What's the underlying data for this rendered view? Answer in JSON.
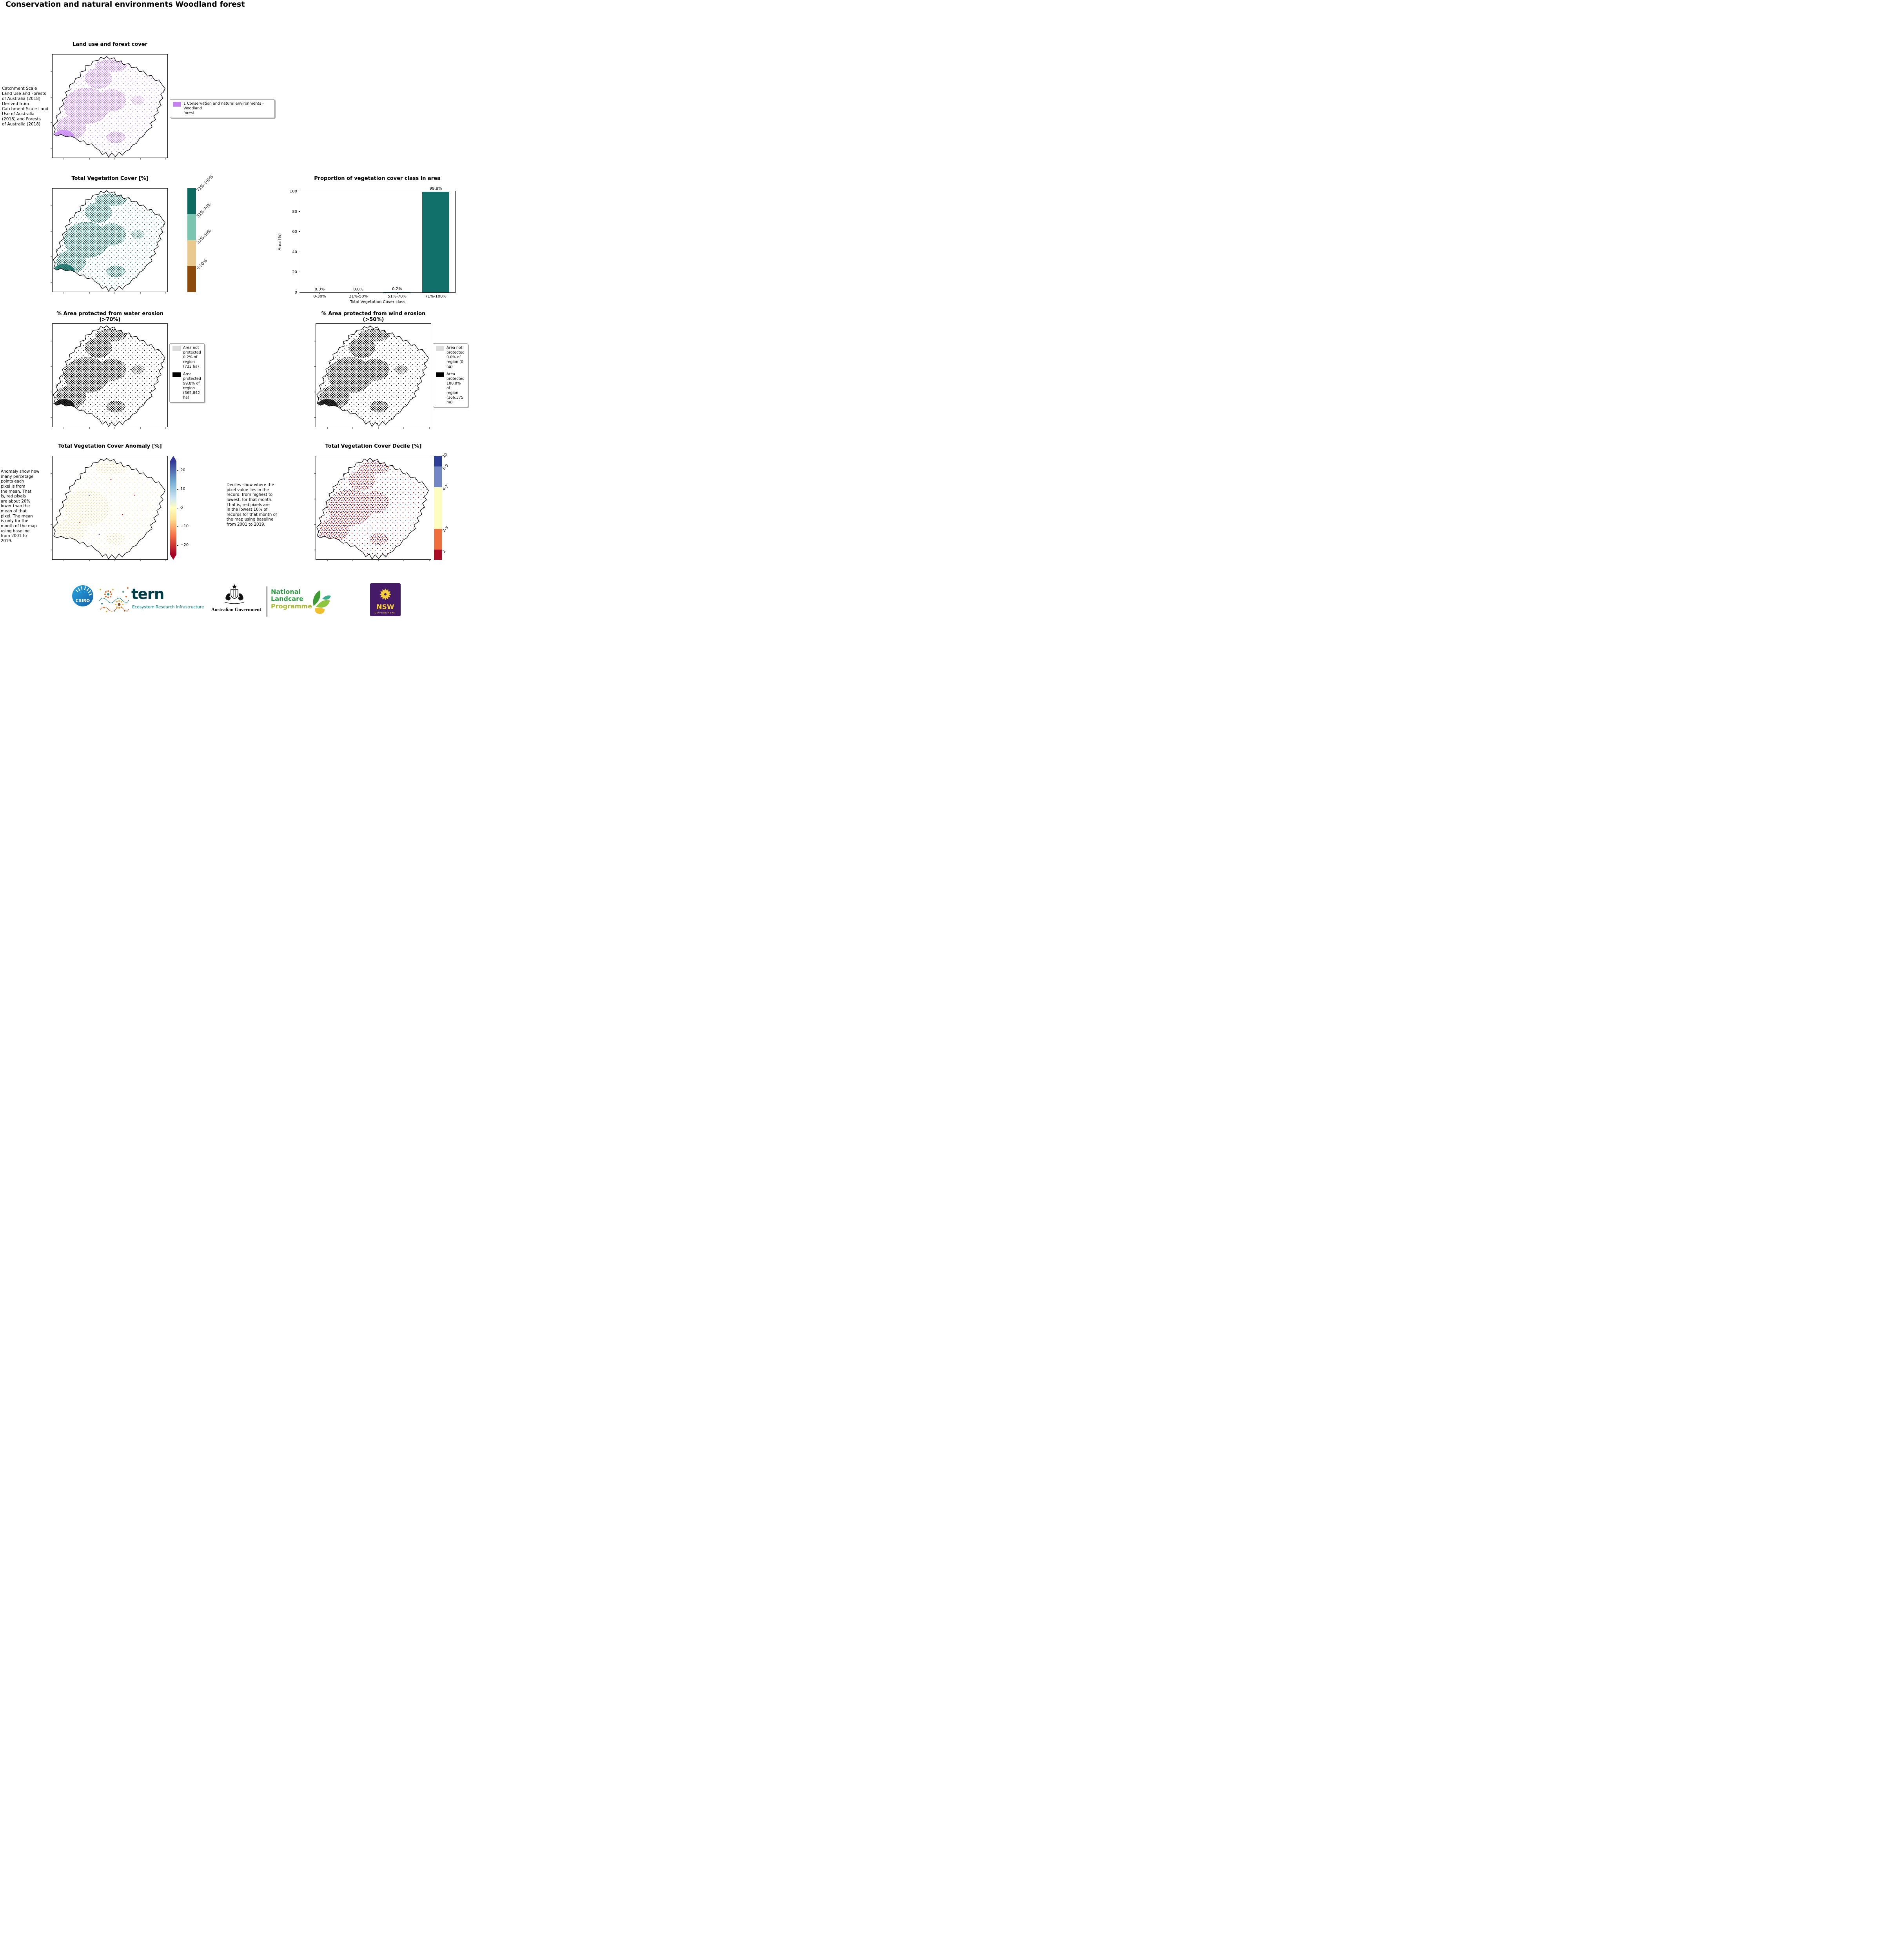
{
  "page": {
    "title": "Conservation and natural environments Woodland forest"
  },
  "colors": {
    "landuse_purple": "#c583f1",
    "teal_dark": "#0d6a60",
    "teal_light": "#7bc4af",
    "tan": "#e9c98f",
    "brown": "#8c4a0b",
    "not_protected_gray": "#dcdcdc",
    "protected_black": "#000000",
    "anomaly_yellow": "#f7e49e"
  },
  "panels": {
    "landuse": {
      "title": "Land use and forest cover",
      "caption": "Catchment Scale\nLand Use and Forests\nof Australia (2018)\nDerived from\nCatchment Scale Land\nUse of Australia\n(2018) and Forests\nof Australia (2018)",
      "legend": [
        {
          "label": "1 Conservation and natural environments - Woodland\nforest",
          "color": "#c583f1"
        }
      ]
    },
    "vegcover": {
      "title": "Total Vegetation Cover [%]",
      "colorbar": [
        {
          "label": "71%-100%",
          "color": "#0d6a60"
        },
        {
          "label": "51%-70%",
          "color": "#7bc4af"
        },
        {
          "label": "31%-50%",
          "color": "#e9c98f"
        },
        {
          "label": "0-30%",
          "color": "#8c4a0b"
        }
      ]
    },
    "water": {
      "title": "% Area protected from water erosion (>70%)",
      "legend": [
        {
          "label": "Area not\nprotected\n0.2% of\nregion\n(733 ha)",
          "color": "#dcdcdc"
        },
        {
          "label": "Area\nprotected\n99.8% of\nregion\n(365,842\nha)",
          "color": "#000000"
        }
      ]
    },
    "wind": {
      "title": "% Area protected from wind erosion (>50%)",
      "legend": [
        {
          "label": "Area not\nprotected\n0.0% of\nregion (0\nha)",
          "color": "#dcdcdc"
        },
        {
          "label": "Area\nprotected\n100.0% of\nregion\n(366,575\nha)",
          "color": "#000000"
        }
      ]
    },
    "anomaly": {
      "title": "Total Vegetation Cover Anomaly [%]",
      "caption": "Anomaly show how\nmany percetage\npoints each\npixel is from\nthe mean. That\nis, red pixels\nare about 20%\nlower than the\nmean of that\npixel. The mean\nis only for the\nmonth of the map\nusing baseline\nfrom 2001 to\n2019.",
      "colorbar_ticks": [
        "20",
        "10",
        "0",
        "−10",
        "−20"
      ],
      "colorbar_range": [
        -25,
        25
      ]
    },
    "decile": {
      "title": "Total Vegetation Cover Decile [%]",
      "caption": "Deciles show where the\npixel value lies in the\nrecord, from highest to\nlowest, for that month.\nThat is, red pixels are\nin the lowest 10% of\nrecords for that month of\nthe map using baseline\nfrom 2001 to 2019.",
      "colorbar": [
        {
          "label": "10",
          "color": "#2c3f94",
          "pct": 10
        },
        {
          "label": "8-9",
          "color": "#7286c4",
          "pct": 20
        },
        {
          "label": "4-7",
          "color": "#fdfdc0",
          "pct": 40
        },
        {
          "label": "2-3",
          "color": "#ee6f3e",
          "pct": 20
        },
        {
          "label": "1",
          "color": "#ab0d26",
          "pct": 10
        }
      ]
    }
  },
  "chart_data": {
    "type": "bar",
    "title": "Proportion of vegetation cover class in area",
    "categories": [
      "0-30%",
      "31%-50%",
      "51%-70%",
      "71%-100%"
    ],
    "values": [
      0.0,
      0.0,
      0.2,
      99.8
    ],
    "bar_labels": [
      "0.0%",
      "0.0%",
      "0.2%",
      "99.8%"
    ],
    "xlabel": "Total Vegetation Cover class",
    "ylabel": "Area (%)",
    "ylim": [
      0,
      100
    ],
    "yticks": [
      0,
      20,
      40,
      60,
      80,
      100
    ],
    "bar_color": "#11706a",
    "grid": false,
    "legend_position": "none"
  },
  "footer": {
    "csiro_label": "CSIRO",
    "tern_name": "tern",
    "tern_subtitle": "Ecosystem Research Infrastructure",
    "aus_gov": "Australian Government",
    "landcare": {
      "line1": "National",
      "line2": "Landcare",
      "line3": "Programme"
    },
    "nsw": {
      "name": "NSW",
      "sub": "GOVERNMENT"
    }
  }
}
